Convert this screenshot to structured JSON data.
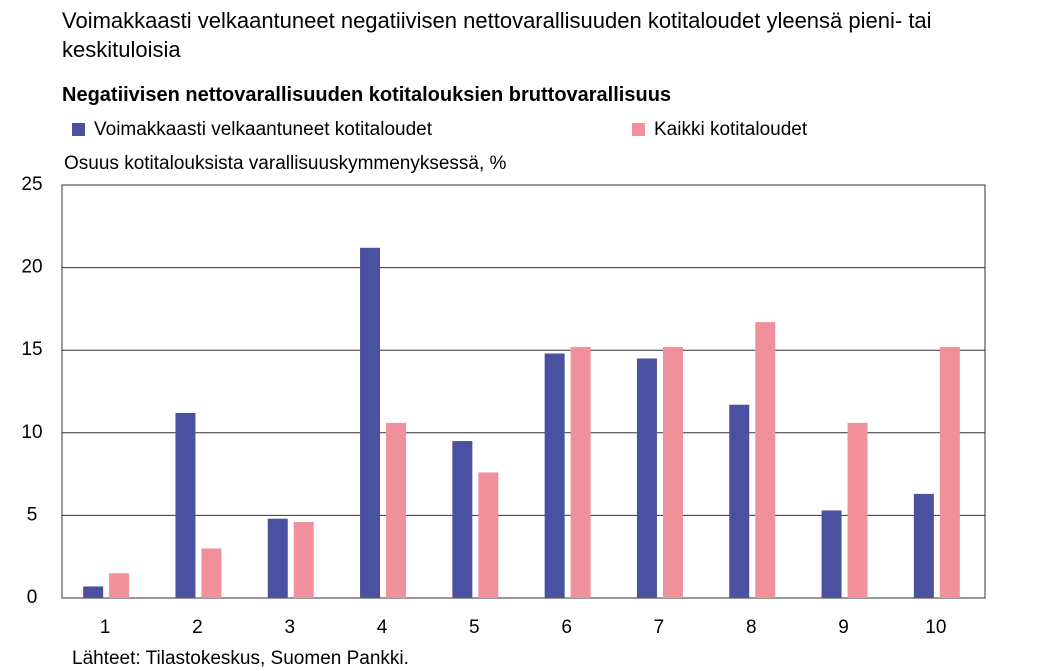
{
  "chart_data": {
    "type": "bar",
    "title": "Voimakkaasti velkaantuneet negatiivisen nettovarallisuuden kotitaloudet yleensä pieni- tai keskituloisia",
    "subtitle": "Negatiivisen nettovarallisuuden kotitalouksien bruttovarallisuus",
    "y_axis_label": "Osuus kotitalouksista varallisuuskymmenyksessä, %",
    "source": "Lähteet: Tilastokeskus, Suomen Pankki.",
    "categories": [
      "1",
      "2",
      "3",
      "4",
      "5",
      "6",
      "7",
      "8",
      "9",
      "10"
    ],
    "series": [
      {
        "name": "Voimakkaasti velkaantuneet kotitaloudet",
        "color": "#4b51a1",
        "values": [
          0.7,
          11.2,
          4.8,
          21.2,
          9.5,
          14.8,
          14.5,
          11.7,
          5.3,
          6.3
        ]
      },
      {
        "name": "Kaikki kotitaloudet",
        "color": "#f0909a",
        "values": [
          1.5,
          3.0,
          4.6,
          10.6,
          7.6,
          15.2,
          15.2,
          16.7,
          10.6,
          15.2
        ]
      }
    ],
    "ylim": [
      0,
      25
    ],
    "yticks": [
      0,
      5,
      10,
      15,
      20,
      25
    ],
    "grid": true
  }
}
